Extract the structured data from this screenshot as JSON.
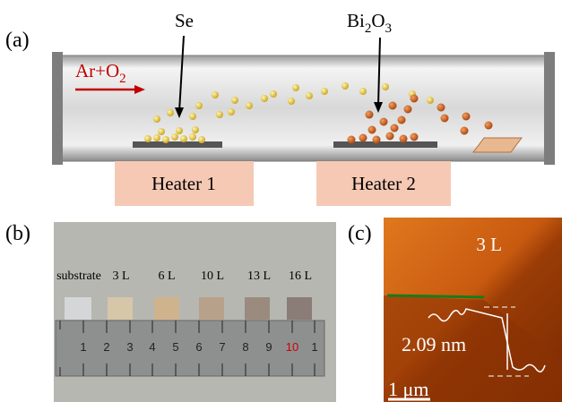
{
  "panel_a": {
    "label": "(a)",
    "carrier_gas": [
      "Ar+O",
      "2"
    ],
    "source_1": "Se",
    "source_2": [
      "Bi",
      "2",
      "O",
      "3"
    ],
    "heater_1": "Heater 1",
    "heater_2": "Heater 2"
  },
  "panel_b": {
    "label": "(b)",
    "samples": [
      "substrate",
      "3 L",
      "6 L",
      "10 L",
      "13 L",
      "16 L"
    ],
    "ruler_numbers": [
      "1",
      "2",
      "3",
      "4",
      "5",
      "6",
      "7",
      "8",
      "9",
      "10",
      "1"
    ]
  },
  "panel_c": {
    "label": "(c)",
    "thickness": "3 L",
    "step_height": "2.09 nm",
    "scale_bar": "1 μm"
  }
}
